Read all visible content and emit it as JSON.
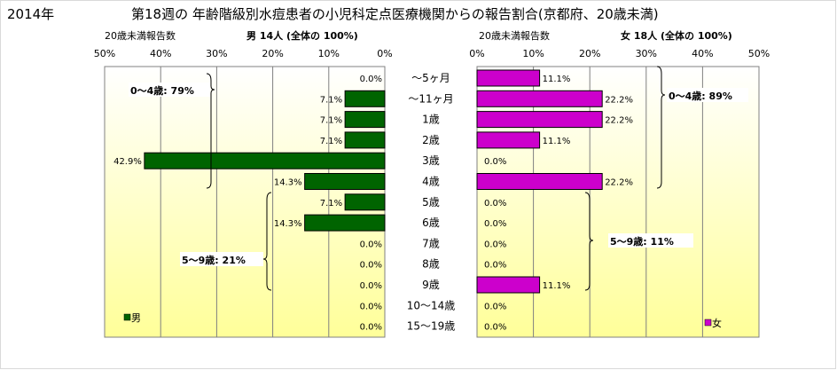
{
  "header": {
    "year": "2014年",
    "title": "第18週の  年齢階級別水痘患者の小児科定点医療機関からの報告割合(京都府、20歳未満)"
  },
  "left_panel": {
    "subtitle_left": "20歳未満報告数",
    "subtitle_right": "男  14人  (全体の  100%)",
    "legend": "男",
    "bracket_0_4": "0〜4歳: 79%",
    "bracket_5_9": "5〜9歳: 21%"
  },
  "right_panel": {
    "subtitle_left": "20歳未満報告数",
    "subtitle_right": "女  18人  (全体の  100%)",
    "legend": "女",
    "bracket_0_4": "0〜4歳: 89%",
    "bracket_5_9": "5〜9歳: 11%"
  },
  "colors": {
    "male": "#006400",
    "female": "#cc00cc",
    "gradient_top": "#ffffff",
    "gradient_bottom": "#ffff99"
  },
  "chart_data": {
    "type": "bar",
    "orientation": "horizontal",
    "layout": "population-pyramid",
    "xlim": [
      0,
      50
    ],
    "ticks": [
      0,
      10,
      20,
      30,
      40,
      50
    ],
    "tick_labels": [
      "0%",
      "10%",
      "20%",
      "30%",
      "40%",
      "50%"
    ],
    "categories": [
      "〜5ヶ月",
      "〜11ヶ月",
      "1歳",
      "2歳",
      "3歳",
      "4歳",
      "5歳",
      "6歳",
      "7歳",
      "8歳",
      "9歳",
      "10〜14歳",
      "15〜19歳"
    ],
    "series": [
      {
        "name": "男",
        "values": [
          0.0,
          7.1,
          7.1,
          7.1,
          42.9,
          14.3,
          7.1,
          14.3,
          0.0,
          0.0,
          0.0,
          0.0,
          0.0
        ],
        "labels": [
          "0.0%",
          "7.1%",
          "7.1%",
          "7.1%",
          "42.9%",
          "14.3%",
          "7.1%",
          "14.3%",
          "0.0%",
          "0.0%",
          "0.0%",
          "0.0%",
          "0.0%"
        ]
      },
      {
        "name": "女",
        "values": [
          11.1,
          22.2,
          22.2,
          11.1,
          0.0,
          22.2,
          0.0,
          0.0,
          0.0,
          0.0,
          11.1,
          0.0,
          0.0
        ],
        "labels": [
          "11.1%",
          "22.2%",
          "22.2%",
          "11.1%",
          "0.0%",
          "22.2%",
          "0.0%",
          "0.0%",
          "0.0%",
          "0.0%",
          "11.1%",
          "0.0%",
          "0.0%"
        ]
      }
    ],
    "grid": true
  }
}
